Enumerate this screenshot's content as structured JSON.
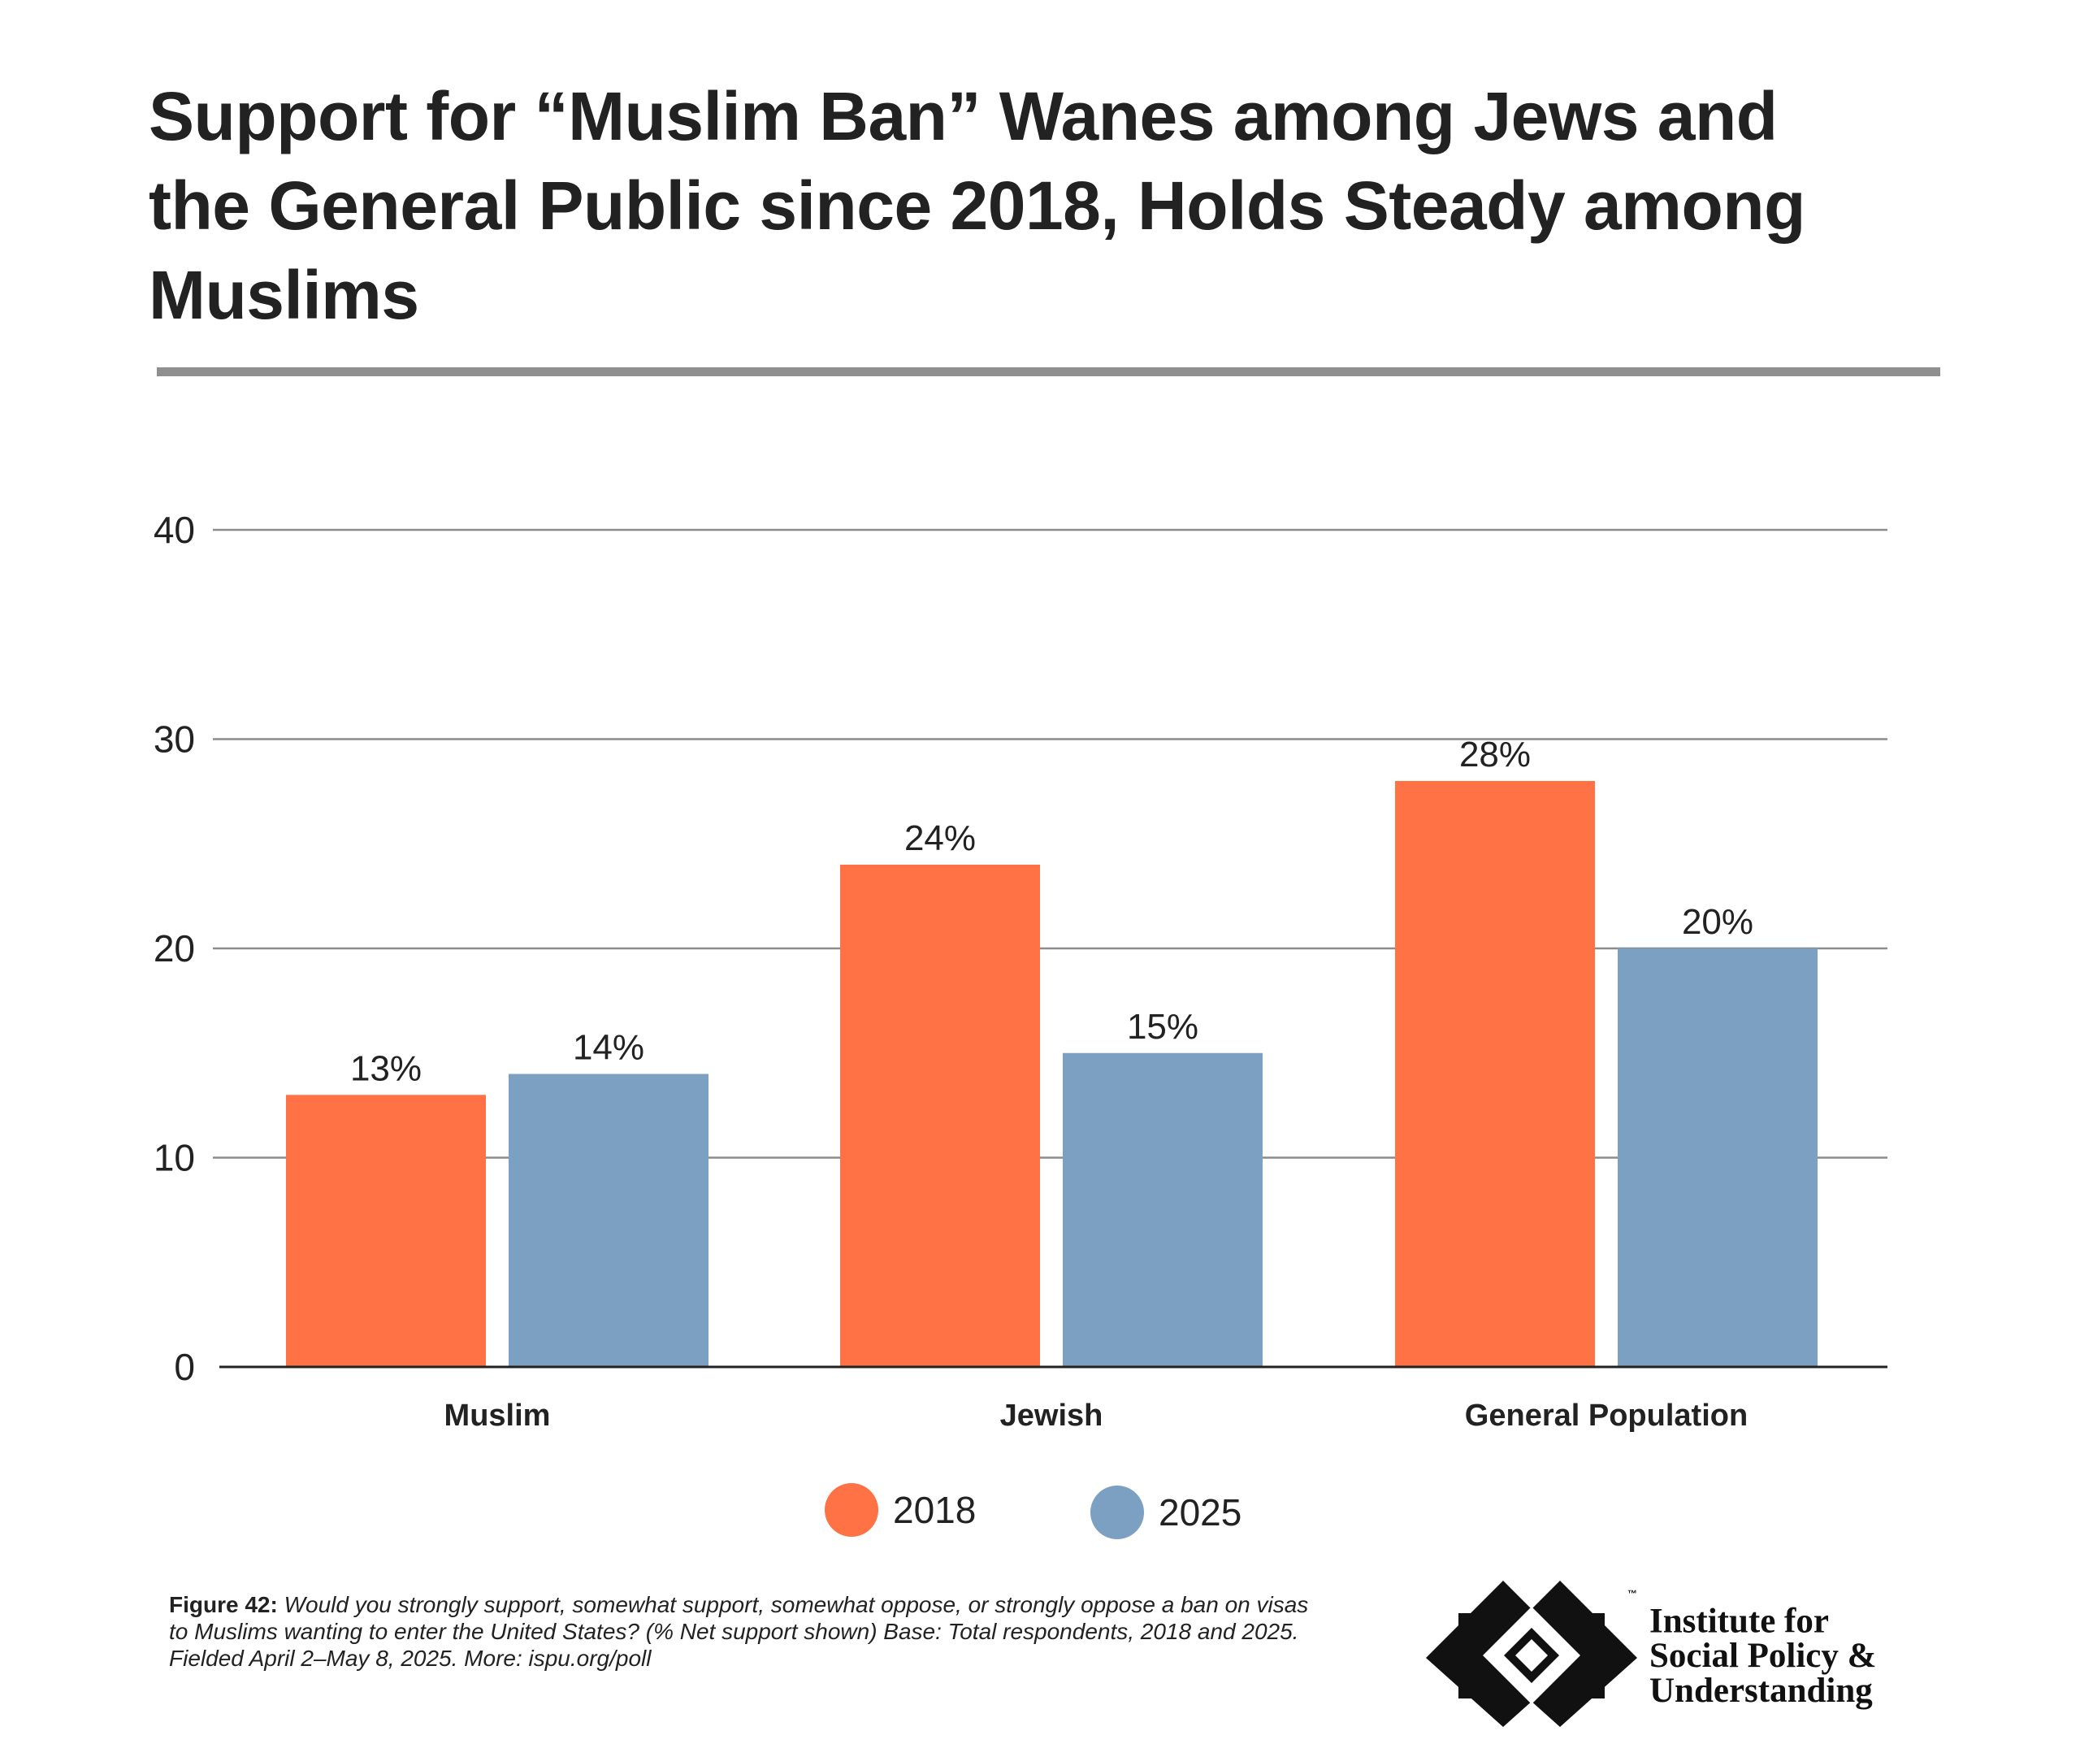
{
  "title": "Support for “Muslim Ban” Wanes among Jews and the General Public since 2018, Holds Steady among Muslims",
  "chart_data": {
    "type": "bar",
    "categories": [
      "Muslim",
      "Jewish",
      "General Population"
    ],
    "series": [
      {
        "name": "2018",
        "values": [
          13,
          24,
          28
        ],
        "labels": [
          "13%",
          "24%",
          "28%"
        ],
        "color": "#ff7245"
      },
      {
        "name": "2025",
        "values": [
          14,
          15,
          20
        ],
        "labels": [
          "14%",
          "15%",
          "20%"
        ],
        "color": "#7ba0c2"
      }
    ],
    "y_ticks": [
      "0",
      "10",
      "20",
      "30",
      "40"
    ],
    "ylim": [
      0,
      40
    ],
    "grid": true,
    "legend_position": "bottom-center"
  },
  "legend": {
    "items": [
      {
        "label": "2018",
        "color": "#ff7245"
      },
      {
        "label": "2025",
        "color": "#7ba0c2"
      }
    ]
  },
  "footnote": {
    "figure_label": "Figure 42:",
    "text": "Would you strongly support, somewhat support, somewhat oppose, or strongly oppose a ban on visas to Muslims wanting to enter the United States? (% Net support shown) Base: Total respondents, 2018 and 2025. Fielded April 2–May 8, 2025. More: ispu.org/poll"
  },
  "logo": {
    "line1": "Institute for",
    "line2": "Social Policy &",
    "line3": "Understanding",
    "trademark": "™"
  },
  "colors": {
    "grid": "#8c8c8c",
    "axis": "#222222",
    "text": "#222222"
  }
}
